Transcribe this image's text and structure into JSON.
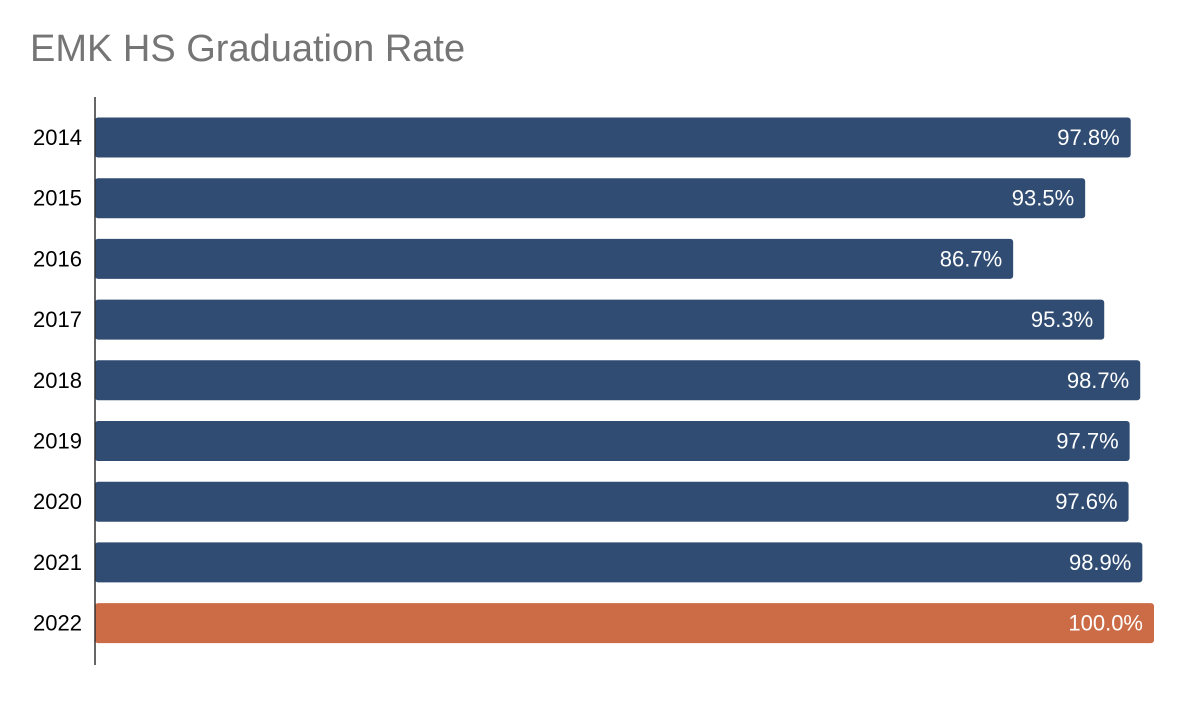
{
  "chart_data": {
    "type": "bar",
    "orientation": "horizontal",
    "title": "EMK HS Graduation Rate",
    "xlabel": "",
    "ylabel": "",
    "categories": [
      "2014",
      "2015",
      "2016",
      "2017",
      "2018",
      "2019",
      "2020",
      "2021",
      "2022"
    ],
    "values": [
      97.8,
      93.5,
      86.7,
      95.3,
      98.7,
      97.7,
      97.6,
      98.9,
      100.0
    ],
    "value_labels": [
      "97.8%",
      "93.5%",
      "86.7%",
      "95.3%",
      "98.7%",
      "97.7%",
      "97.6%",
      "98.9%",
      "100.0%"
    ],
    "xlim": [
      0,
      100
    ],
    "grid": false,
    "legend": "none",
    "colors": {
      "default_bar": "#304c72",
      "highlight_bar": "#cc6c47",
      "title": "#757575",
      "axis": "#333333"
    },
    "highlight_category": "2022"
  }
}
